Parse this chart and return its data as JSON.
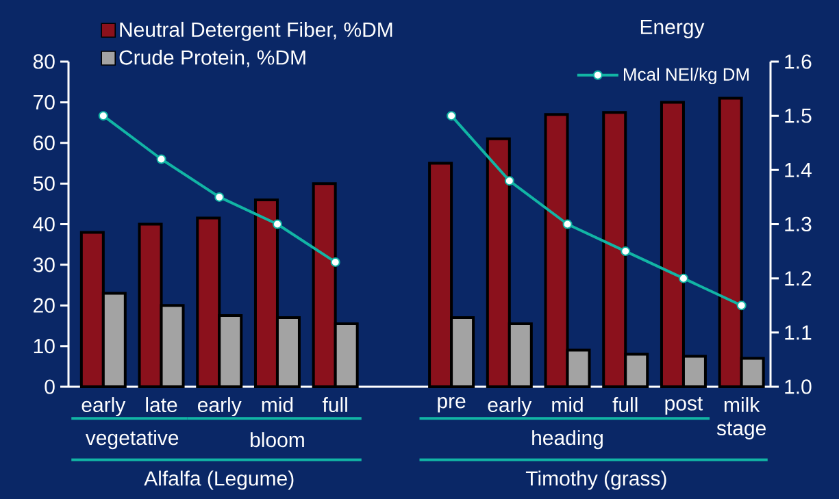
{
  "chart_data": {
    "type": "bar",
    "categories": [
      "early",
      "late",
      "early",
      "mid",
      "full",
      null,
      "pre",
      "early",
      "mid",
      "full",
      "post",
      "milk stage"
    ],
    "series": [
      {
        "name": "Neutral Detergent Fiber, %DM",
        "color": "#8b111c",
        "values": [
          38,
          40,
          41.5,
          46,
          50,
          null,
          55,
          61,
          67,
          67.5,
          70,
          71
        ]
      },
      {
        "name": "Crude Protein, %DM",
        "color": "#a3a3a3",
        "values": [
          23,
          20,
          17.5,
          17,
          15.5,
          null,
          17,
          15.5,
          9,
          8,
          7.5,
          7
        ]
      },
      {
        "name": "Mcal NEl/kg DM",
        "type": "line",
        "axis": "y2",
        "color": "#12b5a5",
        "values": [
          1.5,
          1.42,
          1.35,
          1.3,
          1.23,
          null,
          1.5,
          1.38,
          1.3,
          1.25,
          1.2,
          1.15
        ]
      }
    ],
    "ylim": [
      0,
      80
    ],
    "yticks": [
      0,
      10,
      20,
      30,
      40,
      50,
      60,
      70,
      80
    ],
    "y2lim": [
      1.0,
      1.6
    ],
    "y2ticks": [
      {
        "value": 1.0,
        "label": "1.0"
      },
      1.1,
      1.2,
      1.3,
      1.4,
      1.5,
      1.6
    ],
    "y2label": "Energy",
    "marker": "circle",
    "legend": "top left",
    "annotations": [
      "vegetative",
      "bloom",
      "heading",
      "Alfalfa (Legume)",
      "Timothy (grass)"
    ]
  }
}
